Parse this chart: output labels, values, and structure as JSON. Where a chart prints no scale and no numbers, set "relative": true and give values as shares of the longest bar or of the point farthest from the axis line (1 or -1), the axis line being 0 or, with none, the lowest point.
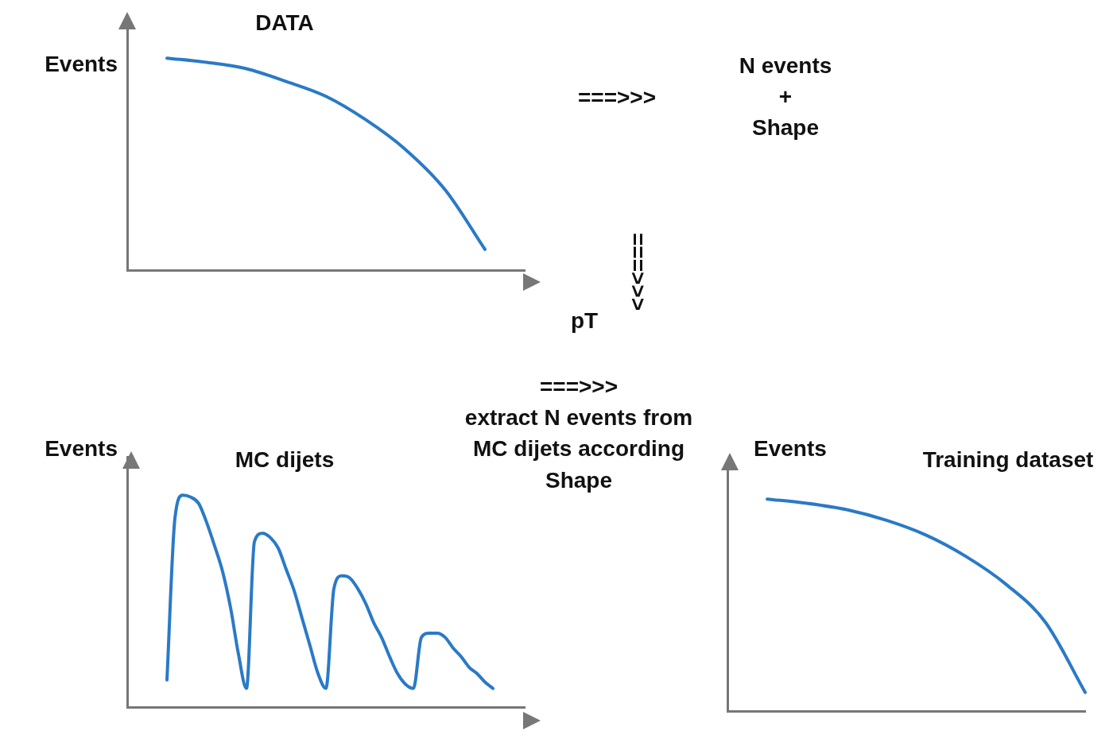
{
  "chart_data": [
    {
      "type": "line",
      "title": "DATA",
      "ylabel": "Events",
      "xlabel": "pT",
      "relative": true,
      "marker": "none",
      "categories": [
        null,
        null,
        null,
        null,
        null,
        null,
        null,
        null,
        null,
        null,
        null
      ],
      "series": [
        {
          "color": "#2a7ac6",
          "values": [
            null,
            1,
            0.98,
            0.95,
            0.89,
            0.82,
            0.71,
            0.57,
            0.38,
            0.1,
            null
          ]
        }
      ]
    },
    {
      "type": "line",
      "title": "MC dijets",
      "ylabel": "Events",
      "relative": true,
      "marker": "none",
      "categories": [
        null,
        null,
        null,
        null,
        null,
        null,
        null,
        null,
        null,
        null,
        null,
        null,
        null,
        null,
        null,
        null,
        null,
        null,
        null,
        null,
        null,
        null,
        null,
        null,
        null,
        null,
        null,
        null,
        null,
        null,
        null,
        null,
        null,
        null,
        null,
        null,
        null,
        null,
        null,
        null,
        null,
        null,
        null,
        null,
        null,
        null,
        null,
        null,
        null,
        null,
        null
      ],
      "series": [
        {
          "color": "#2a7ac6",
          "values": [
            null,
            null,
            null,
            null,
            null,
            0.13,
            0.89,
            1,
            0.99,
            0.96,
            0.87,
            0.76,
            0.64,
            0.47,
            0.25,
            0.09,
            0.78,
            0.82,
            0.8,
            0.75,
            0.65,
            0.55,
            0.42,
            0.29,
            0.16,
            0.09,
            0.56,
            0.62,
            0.61,
            0.56,
            0.49,
            0.4,
            0.33,
            0.24,
            0.16,
            0.11,
            0.09,
            0.33,
            0.35,
            0.35,
            0.33,
            0.28,
            0.24,
            0.19,
            0.16,
            0.12,
            0.09,
            null,
            null,
            null,
            null
          ]
        }
      ]
    },
    {
      "type": "line",
      "title": "Training dataset",
      "ylabel": "Events",
      "relative": true,
      "marker": "none",
      "categories": [
        null,
        null,
        null,
        null,
        null,
        null,
        null,
        null,
        null,
        null
      ],
      "series": [
        {
          "color": "#2a7ac6",
          "values": [
            null,
            1,
            0.98,
            0.95,
            0.9,
            0.83,
            0.73,
            0.6,
            0.42,
            0.09
          ]
        }
      ]
    },
    {
      "type": "other",
      "annotations": [
        "===>>>",
        "N events\n+\nShape",
        "===>>>",
        "===>>>\nextract N events from\nMC dijets according\nShape"
      ]
    }
  ]
}
